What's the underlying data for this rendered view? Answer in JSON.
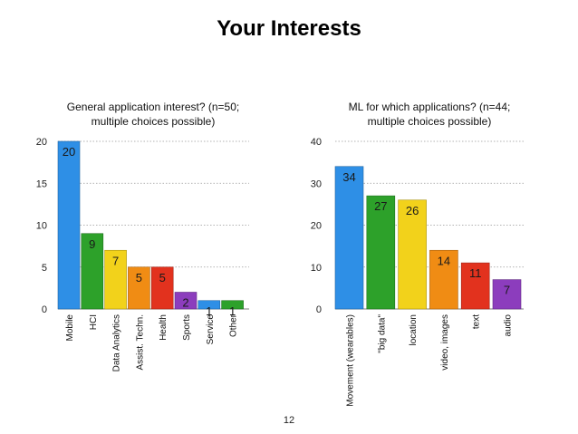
{
  "slide": {
    "title": "Your Interests",
    "page_number": "12"
  },
  "chart_data": [
    {
      "type": "bar",
      "title": "General application interest? (n=50; multiple choices possible)",
      "title_lines": [
        "General application interest? (n=50;",
        "multiple choices possible)"
      ],
      "categories": [
        "Mobile",
        "HCI",
        "Data Analytics",
        "Assist. Techn.",
        "Health",
        "Sports",
        "Service",
        "Other"
      ],
      "values": [
        20,
        9,
        7,
        5,
        5,
        2,
        1,
        1
      ],
      "ylim": [
        0,
        20
      ],
      "yticks": [
        0,
        5,
        10,
        15,
        20
      ],
      "grid": true,
      "bar_colors": [
        "#2e8fe6",
        "#2da12a",
        "#f2d21b",
        "#f08c14",
        "#e2321e",
        "#8c3dbd",
        "#2e8fe6",
        "#2da12a"
      ]
    },
    {
      "type": "bar",
      "title": "ML for which applications? (n=44; multiple choices possible)",
      "title_lines": [
        "ML for which applications? (n=44;",
        "multiple choices possible)"
      ],
      "categories": [
        "Movement (wearables)",
        "\"big data\"",
        "location",
        "video, images",
        "text",
        "audio"
      ],
      "values": [
        34,
        27,
        26,
        14,
        11,
        7
      ],
      "ylim": [
        0,
        40
      ],
      "yticks": [
        0,
        10,
        20,
        30,
        40
      ],
      "grid": true,
      "bar_colors": [
        "#2e8fe6",
        "#2da12a",
        "#f2d21b",
        "#f08c14",
        "#e2321e",
        "#8c3dbd"
      ]
    }
  ]
}
